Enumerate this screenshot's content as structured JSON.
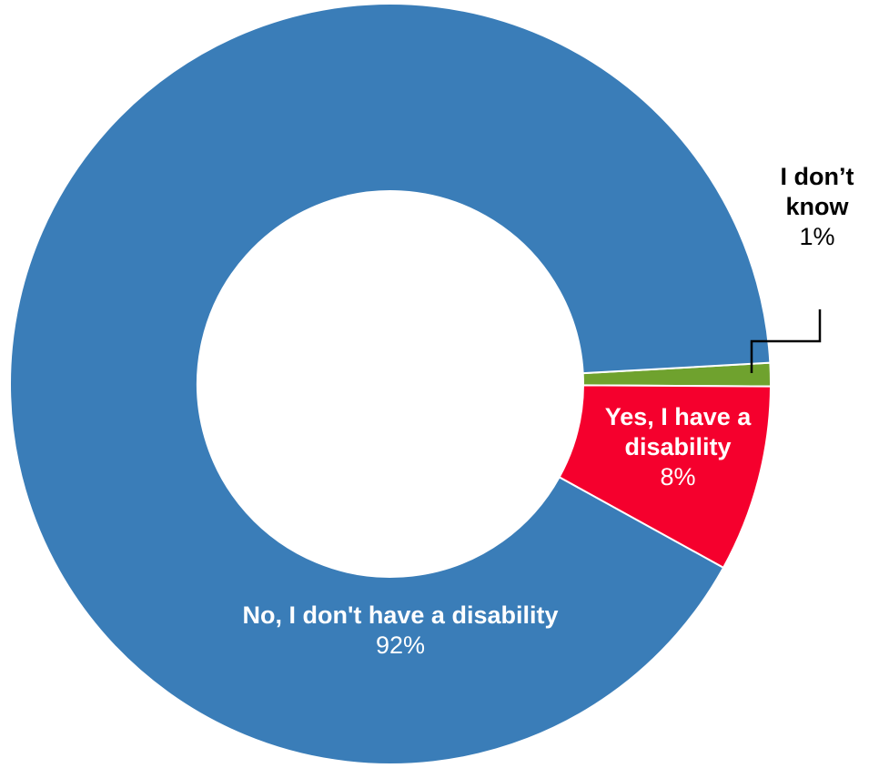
{
  "chart_data": {
    "type": "pie",
    "donut": true,
    "slices": [
      {
        "label": "No, I don't have a disability",
        "value": 92,
        "value_label": "92%",
        "color": "#3A7DB8"
      },
      {
        "label": "Yes, I have a disability",
        "value": 8,
        "value_label": "8%",
        "color": "#F5002D"
      },
      {
        "label": "I don’t know",
        "value": 1,
        "value_label": "1%",
        "color": "#6FA22E"
      }
    ],
    "legend": "none"
  }
}
